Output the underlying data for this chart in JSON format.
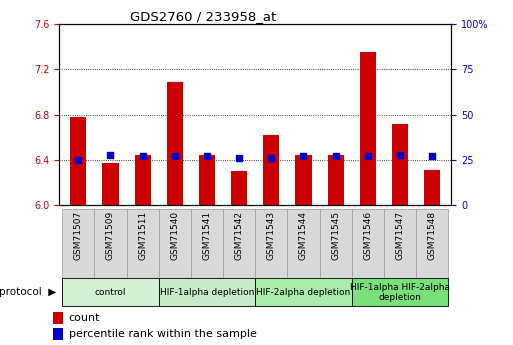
{
  "title": "GDS2760 / 233958_at",
  "samples": [
    "GSM71507",
    "GSM71509",
    "GSM71511",
    "GSM71540",
    "GSM71541",
    "GSM71542",
    "GSM71543",
    "GSM71544",
    "GSM71545",
    "GSM71546",
    "GSM71547",
    "GSM71548"
  ],
  "count_values": [
    6.78,
    6.37,
    6.44,
    7.09,
    6.44,
    6.3,
    6.62,
    6.44,
    6.44,
    7.35,
    6.72,
    6.31
  ],
  "percentile_values": [
    25,
    28,
    27,
    27,
    27,
    26,
    26,
    27,
    27,
    27,
    28,
    27
  ],
  "ylim": [
    6.0,
    7.6
  ],
  "yticks_left": [
    6.0,
    6.4,
    6.8,
    7.2,
    7.6
  ],
  "yticks_right": [
    0,
    25,
    50,
    75,
    100
  ],
  "bar_color": "#cc0000",
  "dot_color": "#0000cc",
  "protocol_groups": [
    {
      "label": "control",
      "start": 0,
      "end": 2,
      "color": "#d4f0d4"
    },
    {
      "label": "HIF-1alpha depletion",
      "start": 3,
      "end": 5,
      "color": "#c8eac8"
    },
    {
      "label": "HIF-2alpha depletion",
      "start": 6,
      "end": 8,
      "color": "#aaeaaa"
    },
    {
      "label": "HIF-1alpha HIF-2alpha\ndepletion",
      "start": 9,
      "end": 11,
      "color": "#7ae07a"
    }
  ],
  "legend_items": [
    {
      "label": "count",
      "color": "#cc0000"
    },
    {
      "label": "percentile rank within the sample",
      "color": "#0000cc"
    }
  ],
  "sample_box_color": "#d8d8d8",
  "sample_box_edge": "#999999"
}
